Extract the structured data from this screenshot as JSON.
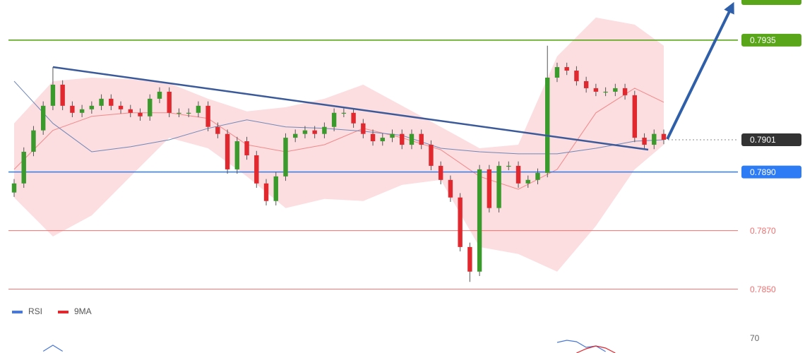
{
  "chart_data": {
    "type": "candlestick",
    "candles": {
      "open": [
        0.7883,
        0.78861,
        0.78969,
        0.79042,
        0.79126,
        0.79198,
        0.79126,
        0.79102,
        0.79114,
        0.79126,
        0.7915,
        0.79126,
        0.79114,
        0.79102,
        0.7909,
        0.7915,
        0.79174,
        0.79102,
        0.79102,
        0.79102,
        0.79126,
        0.79054,
        0.7903,
        0.78909,
        0.79005,
        0.78957,
        0.78861,
        0.78801,
        0.78885,
        0.79017,
        0.7903,
        0.79042,
        0.7903,
        0.79054,
        0.79102,
        0.79102,
        0.79066,
        0.7903,
        0.79005,
        0.79017,
        0.7903,
        0.78993,
        0.7903,
        0.78993,
        0.78921,
        0.78873,
        0.78813,
        0.78644,
        0.7856,
        0.78909,
        0.78777,
        0.78921,
        0.78921,
        0.78861,
        0.78873,
        0.78897,
        0.79222,
        0.79258,
        0.79246,
        0.7921,
        0.79186,
        0.79174,
        0.79174,
        0.79186,
        0.79162,
        0.79017,
        0.78993,
        0.7903
      ],
      "high": [
        0.78876,
        0.78984,
        0.79057,
        0.79141,
        0.79258,
        0.79213,
        0.79141,
        0.79129,
        0.79141,
        0.79165,
        0.79165,
        0.79141,
        0.79129,
        0.79117,
        0.79165,
        0.79189,
        0.79189,
        0.79117,
        0.79117,
        0.79141,
        0.79141,
        0.79069,
        0.79045,
        0.7902,
        0.7902,
        0.78972,
        0.78876,
        0.789,
        0.79032,
        0.79045,
        0.79057,
        0.79057,
        0.79069,
        0.79117,
        0.79117,
        0.79117,
        0.79081,
        0.79045,
        0.79032,
        0.79045,
        0.79045,
        0.79045,
        0.79045,
        0.79008,
        0.78936,
        0.78888,
        0.78828,
        0.78659,
        0.78924,
        0.78924,
        0.78936,
        0.78936,
        0.78936,
        0.78888,
        0.78912,
        0.79331,
        0.79273,
        0.79273,
        0.79261,
        0.79225,
        0.79201,
        0.79189,
        0.79201,
        0.79201,
        0.79177,
        0.79032,
        0.79045,
        0.79045
      ],
      "low": [
        0.78815,
        0.78846,
        0.78954,
        0.79027,
        0.79111,
        0.79111,
        0.79087,
        0.79087,
        0.79099,
        0.79111,
        0.79111,
        0.79099,
        0.79087,
        0.79075,
        0.79075,
        0.79135,
        0.79087,
        0.79087,
        0.79087,
        0.79087,
        0.79039,
        0.79015,
        0.78894,
        0.78894,
        0.78942,
        0.78846,
        0.78786,
        0.78786,
        0.7887,
        0.79002,
        0.79015,
        0.79015,
        0.79015,
        0.79039,
        0.79087,
        0.79051,
        0.79015,
        0.7899,
        0.7899,
        0.79002,
        0.78978,
        0.78978,
        0.78978,
        0.78906,
        0.78858,
        0.78798,
        0.78629,
        0.78525,
        0.78545,
        0.78762,
        0.78762,
        0.78906,
        0.78846,
        0.78846,
        0.78858,
        0.78882,
        0.79207,
        0.79231,
        0.79195,
        0.79171,
        0.79159,
        0.79159,
        0.79159,
        0.79147,
        0.79002,
        0.78978,
        0.78978,
        0.78995
      ],
      "close": [
        0.78861,
        0.78969,
        0.79042,
        0.79126,
        0.79198,
        0.79126,
        0.79102,
        0.79114,
        0.79126,
        0.7915,
        0.79126,
        0.79114,
        0.79102,
        0.7909,
        0.7915,
        0.79174,
        0.79102,
        0.79102,
        0.79102,
        0.79126,
        0.79054,
        0.7903,
        0.78909,
        0.79005,
        0.78957,
        0.78861,
        0.78801,
        0.78885,
        0.79017,
        0.7903,
        0.79042,
        0.7903,
        0.79054,
        0.79102,
        0.79102,
        0.79066,
        0.7903,
        0.79005,
        0.79017,
        0.7903,
        0.78993,
        0.7903,
        0.78993,
        0.78921,
        0.78873,
        0.78813,
        0.78644,
        0.7856,
        0.78909,
        0.78777,
        0.78921,
        0.78921,
        0.78861,
        0.78873,
        0.78897,
        0.79222,
        0.79258,
        0.79246,
        0.7921,
        0.79186,
        0.79174,
        0.79174,
        0.79186,
        0.79162,
        0.79017,
        0.78993,
        0.7903,
        0.7901
      ]
    },
    "up_color": "#3a9a2c",
    "down_color": "#e0282e",
    "wick_color": "#555555",
    "ylim": [
      0.78463,
      0.79487
    ],
    "bands": {
      "x": [
        0,
        4,
        8,
        12,
        16,
        20,
        24,
        28,
        32,
        36,
        40,
        44,
        48,
        52,
        56,
        60,
        64,
        67
      ],
      "upper": [
        0.79066,
        0.7921,
        0.79222,
        0.79217,
        0.79203,
        0.7915,
        0.79107,
        0.79121,
        0.7915,
        0.79198,
        0.79126,
        0.79054,
        0.78981,
        0.78993,
        0.79295,
        0.79427,
        0.79403,
        0.79331
      ],
      "lower": [
        0.78813,
        0.7868,
        0.78752,
        0.78885,
        0.79017,
        0.78981,
        0.78885,
        0.78777,
        0.78808,
        0.78801,
        0.78856,
        0.78873,
        0.78644,
        0.7862,
        0.7856,
        0.78716,
        0.78909,
        0.78993
      ],
      "middle": [
        0.7921,
        0.79066,
        0.78969,
        0.78986,
        0.7901,
        0.79049,
        0.79078,
        0.79054,
        0.79049,
        0.79039,
        0.79025,
        0.78981,
        0.78969,
        0.78962,
        0.78962,
        0.78981,
        0.79005,
        0.7901
      ],
      "ma": [
        0.78909,
        0.79042,
        0.7909,
        0.79102,
        0.79102,
        0.79083,
        0.78993,
        0.78969,
        0.78993,
        0.79049,
        0.79017,
        0.78976,
        0.78885,
        0.78841,
        0.78909,
        0.79102,
        0.79186,
        0.79138
      ],
      "fill": "#fcdde0",
      "middle_color": "#7088b8",
      "ma_color": "#f08a8a"
    },
    "levels": [
      {
        "value": 0.7935,
        "color": "#5aa61a",
        "boxed": true,
        "dotted": false
      },
      {
        "value": 0.7901,
        "color": "#333333",
        "boxed": true,
        "dotted": true
      },
      {
        "value": 0.789,
        "label": "0.7890",
        "color": "#2d7cf6",
        "boxed": true,
        "dotted": false
      },
      {
        "value": 0.787,
        "label": "0.7870",
        "color": "#f07070",
        "boxed": false,
        "dotted": false
      },
      {
        "value": 0.785,
        "label": "0.7850",
        "color": "#f07070",
        "boxed": false,
        "dotted": false
      }
    ],
    "rsi_panel": {
      "ylim": [
        62,
        80
      ],
      "yticks": [
        70
      ],
      "series": [
        {
          "name": "RSI",
          "color": "#4a78d6",
          "x": [
            3,
            4,
            5,
            6,
            56,
            57,
            58,
            59,
            60,
            61
          ],
          "values": [
            63,
            66.4,
            63,
            null,
            68,
            69.2,
            68.4,
            65.2,
            66,
            62.8
          ]
        },
        {
          "name": "9MA",
          "color": "#e0282e",
          "x": [
            58,
            59,
            60,
            61,
            62
          ],
          "values": [
            62,
            64.4,
            66,
            64.8,
            62
          ]
        }
      ]
    }
  }
}
